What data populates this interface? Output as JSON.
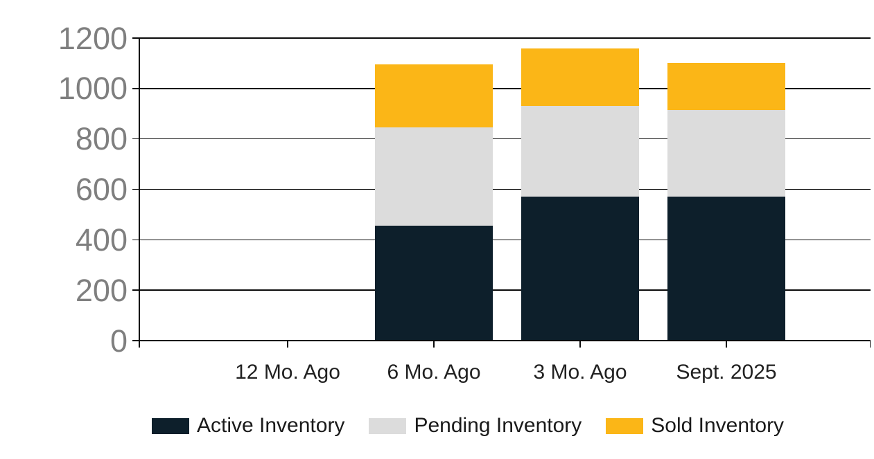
{
  "chart_data": {
    "type": "bar",
    "stacked": true,
    "title": "",
    "xlabel": "",
    "ylabel": "",
    "categories": [
      "12 Mo. Ago",
      "6 Mo. Ago",
      "3 Mo. Ago",
      "Sept. 2025"
    ],
    "series": [
      {
        "name": "Active Inventory",
        "color": "#0d1f2b",
        "values": [
          0,
          455,
          570,
          570
        ]
      },
      {
        "name": "Pending Inventory",
        "color": "#dcdcdc",
        "values": [
          0,
          390,
          360,
          345
        ]
      },
      {
        "name": "Sold Inventory",
        "color": "#fbb617",
        "values": [
          0,
          250,
          230,
          185
        ]
      }
    ],
    "ylim": [
      0,
      1200
    ],
    "yticks": [
      0,
      200,
      400,
      600,
      800,
      1000,
      1200
    ],
    "grid": true,
    "legend_position": "bottom"
  },
  "palette": {
    "background": "#ffffff",
    "grid_line": "#0a0a0a",
    "axis_line": "#0a0a0a",
    "y_tick_label": "#7f7f7f",
    "x_tick_label": "#212121",
    "legend_text": "#1a1a1a"
  }
}
